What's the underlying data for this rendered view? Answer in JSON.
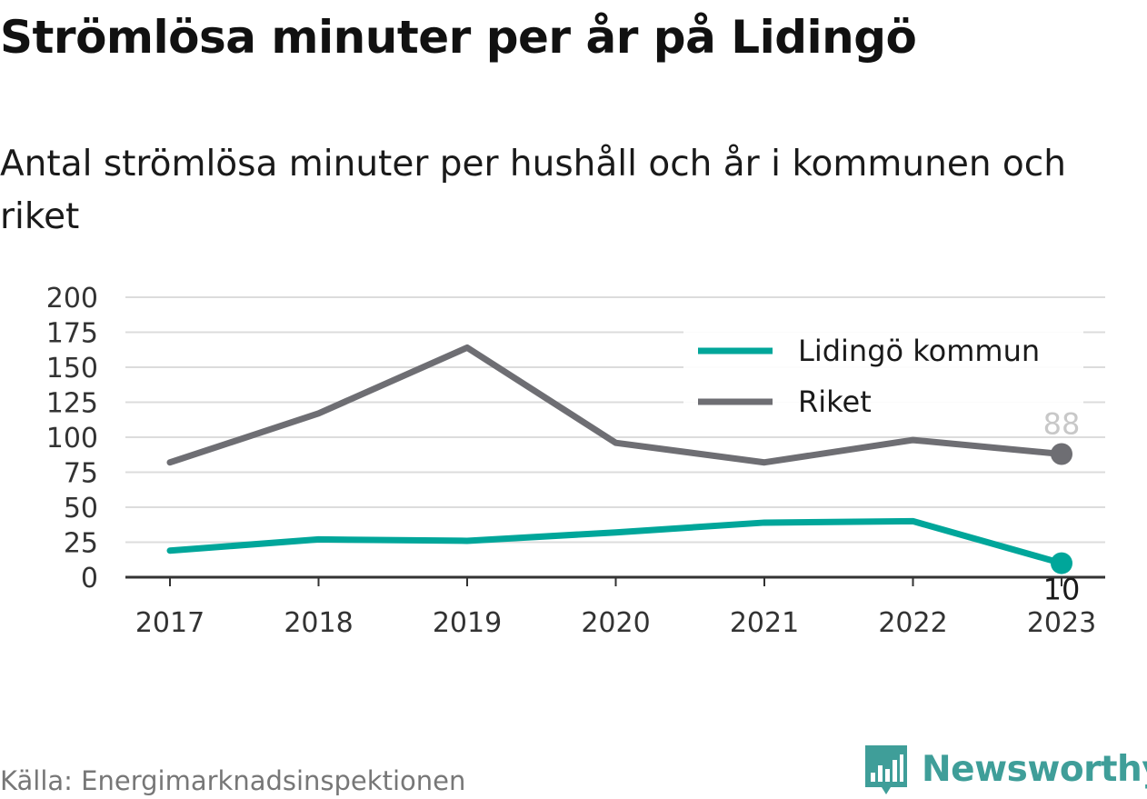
{
  "title": "Strömlösa minuter per år på Lidingö",
  "subtitle": "Antal strömlösa minuter per hushåll och år i kommunen och riket",
  "source": "Källa: Energimarknadsinspektionen",
  "brand": {
    "name": "Newsworthy",
    "color": "#3f9e99"
  },
  "chart_data": {
    "type": "line",
    "x": [
      "2017",
      "2018",
      "2019",
      "2020",
      "2021",
      "2022",
      "2023"
    ],
    "series": [
      {
        "name": "Lidingö kommun",
        "color": "#00a69a",
        "values": [
          19,
          27,
          26,
          32,
          39,
          40,
          10
        ],
        "end_label": "10"
      },
      {
        "name": "Riket",
        "color": "#6e6e73",
        "values": [
          82,
          117,
          164,
          96,
          82,
          98,
          88
        ],
        "end_label": "88"
      }
    ],
    "y_ticks": [
      "0",
      "25",
      "50",
      "75",
      "100",
      "125",
      "150",
      "175",
      "200"
    ],
    "ylim": [
      0,
      200
    ],
    "grid": true,
    "legend": "top-right"
  }
}
